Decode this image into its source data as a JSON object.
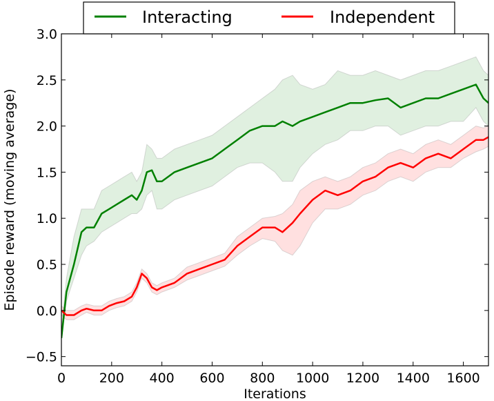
{
  "chart_data": {
    "type": "line",
    "xlabel": "Iterations",
    "ylabel": "Episode reward (moving average)",
    "xlim": [
      0,
      1700
    ],
    "ylim": [
      -0.6,
      3.0
    ],
    "xticks": [
      0,
      200,
      400,
      600,
      800,
      1000,
      1200,
      1400,
      1600
    ],
    "xtick_labels": [
      "0",
      "200",
      "400",
      "600",
      "800",
      "1000",
      "1200",
      "1400",
      "1600"
    ],
    "yticks": [
      -0.5,
      0.0,
      0.5,
      1.0,
      1.5,
      2.0,
      2.5,
      3.0
    ],
    "ytick_labels": [
      "−0.5",
      "0.0",
      "0.5",
      "1.0",
      "1.5",
      "2.0",
      "2.5",
      "3.0"
    ],
    "grid": false,
    "legend": {
      "position": "top-center",
      "columns": 2
    },
    "series": [
      {
        "name": "Interacting",
        "color": "#008000",
        "band_color": "#008000",
        "x": [
          0,
          20,
          50,
          80,
          100,
          130,
          160,
          190,
          220,
          250,
          280,
          300,
          320,
          340,
          360,
          380,
          400,
          450,
          500,
          550,
          600,
          650,
          700,
          750,
          800,
          850,
          880,
          920,
          950,
          1000,
          1050,
          1100,
          1150,
          1200,
          1250,
          1300,
          1350,
          1400,
          1450,
          1500,
          1550,
          1600,
          1650,
          1680,
          1700
        ],
        "mean": [
          -0.3,
          0.2,
          0.5,
          0.85,
          0.9,
          0.9,
          1.05,
          1.1,
          1.15,
          1.2,
          1.25,
          1.2,
          1.3,
          1.5,
          1.52,
          1.4,
          1.4,
          1.5,
          1.55,
          1.6,
          1.65,
          1.75,
          1.85,
          1.95,
          2.0,
          2.0,
          2.05,
          2.0,
          2.05,
          2.1,
          2.15,
          2.2,
          2.25,
          2.25,
          2.28,
          2.3,
          2.2,
          2.25,
          2.3,
          2.3,
          2.35,
          2.4,
          2.45,
          2.3,
          2.25
        ],
        "lower": [
          -0.3,
          0.1,
          0.35,
          0.6,
          0.7,
          0.75,
          0.85,
          0.9,
          0.95,
          1.0,
          1.05,
          1.05,
          1.1,
          1.25,
          1.3,
          1.1,
          1.1,
          1.2,
          1.25,
          1.3,
          1.35,
          1.45,
          1.55,
          1.6,
          1.6,
          1.5,
          1.4,
          1.4,
          1.55,
          1.7,
          1.8,
          1.85,
          1.95,
          1.95,
          2.0,
          2.0,
          1.9,
          1.95,
          2.0,
          2.0,
          2.05,
          2.05,
          2.2,
          2.05,
          2.0
        ],
        "upper": [
          -0.2,
          0.35,
          0.8,
          1.1,
          1.1,
          1.1,
          1.3,
          1.35,
          1.4,
          1.45,
          1.5,
          1.4,
          1.5,
          1.8,
          1.75,
          1.65,
          1.65,
          1.75,
          1.8,
          1.85,
          1.9,
          2.0,
          2.1,
          2.2,
          2.3,
          2.4,
          2.5,
          2.55,
          2.45,
          2.4,
          2.45,
          2.6,
          2.55,
          2.55,
          2.6,
          2.55,
          2.5,
          2.55,
          2.6,
          2.6,
          2.65,
          2.7,
          2.75,
          2.6,
          2.55
        ]
      },
      {
        "name": "Independent",
        "color": "#ff0000",
        "band_color": "#ff0000",
        "x": [
          0,
          20,
          50,
          80,
          100,
          130,
          160,
          190,
          220,
          250,
          280,
          300,
          320,
          340,
          360,
          380,
          400,
          450,
          500,
          550,
          600,
          650,
          700,
          750,
          800,
          850,
          880,
          920,
          950,
          1000,
          1050,
          1100,
          1150,
          1200,
          1250,
          1300,
          1350,
          1400,
          1450,
          1500,
          1550,
          1600,
          1650,
          1680,
          1700
        ],
        "mean": [
          0.0,
          -0.05,
          -0.05,
          0.0,
          0.02,
          0.0,
          0.0,
          0.05,
          0.08,
          0.1,
          0.15,
          0.25,
          0.4,
          0.35,
          0.25,
          0.22,
          0.25,
          0.3,
          0.4,
          0.45,
          0.5,
          0.55,
          0.7,
          0.8,
          0.9,
          0.9,
          0.85,
          0.95,
          1.05,
          1.2,
          1.3,
          1.25,
          1.3,
          1.4,
          1.45,
          1.55,
          1.6,
          1.55,
          1.65,
          1.7,
          1.65,
          1.75,
          1.85,
          1.85,
          1.88
        ],
        "lower": [
          -0.05,
          -0.1,
          -0.1,
          -0.05,
          -0.02,
          -0.05,
          -0.05,
          0.0,
          0.03,
          0.05,
          0.1,
          0.2,
          0.35,
          0.3,
          0.2,
          0.17,
          0.2,
          0.25,
          0.33,
          0.38,
          0.43,
          0.48,
          0.6,
          0.7,
          0.78,
          0.75,
          0.65,
          0.6,
          0.7,
          0.95,
          1.1,
          1.1,
          1.15,
          1.25,
          1.3,
          1.4,
          1.45,
          1.4,
          1.5,
          1.55,
          1.55,
          1.65,
          1.72,
          1.75,
          1.78
        ],
        "upper": [
          0.05,
          0.0,
          0.0,
          0.05,
          0.07,
          0.05,
          0.05,
          0.1,
          0.13,
          0.15,
          0.2,
          0.3,
          0.45,
          0.4,
          0.3,
          0.27,
          0.3,
          0.35,
          0.47,
          0.52,
          0.57,
          0.62,
          0.8,
          0.9,
          1.0,
          1.02,
          1.05,
          1.15,
          1.3,
          1.4,
          1.45,
          1.4,
          1.45,
          1.55,
          1.6,
          1.7,
          1.75,
          1.7,
          1.8,
          1.85,
          1.8,
          1.9,
          2.0,
          1.98,
          2.0
        ]
      }
    ]
  }
}
